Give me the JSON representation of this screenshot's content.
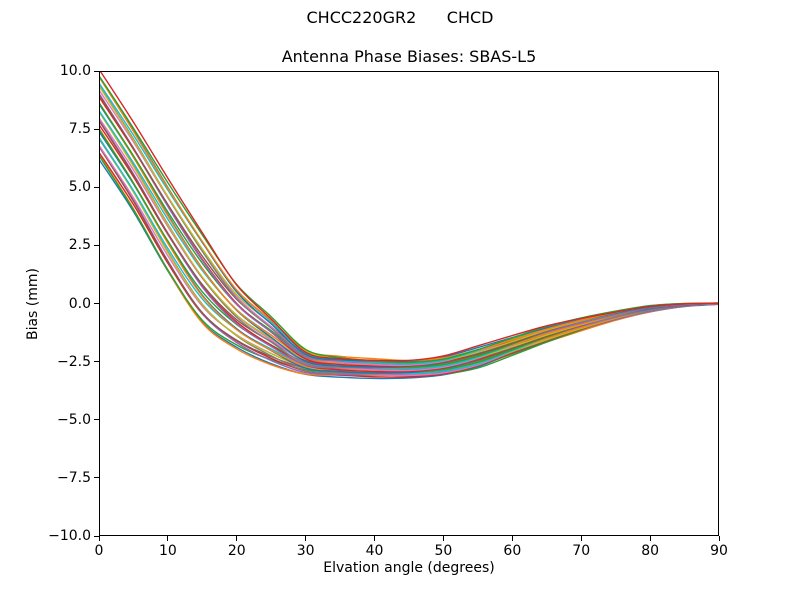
{
  "figure": {
    "suptitle": "CHCC220GR2      CHCD",
    "axes_title": "Antenna Phase Biases: SBAS-L5",
    "xlabel": "Elvation angle (degrees)",
    "ylabel": "Bias (mm)",
    "background_color": "#ffffff",
    "spine_color": "#000000"
  },
  "chart_data": {
    "type": "line",
    "title": "Antenna Phase Biases: SBAS-L5",
    "xlabel": "Elvation angle (degrees)",
    "ylabel": "Bias (mm)",
    "xlim": [
      0,
      90
    ],
    "ylim": [
      -10,
      10
    ],
    "grid": false,
    "legend": null,
    "xticks": [
      {
        "value": 0,
        "label": "0"
      },
      {
        "value": 10,
        "label": "10"
      },
      {
        "value": 20,
        "label": "20"
      },
      {
        "value": 30,
        "label": "30"
      },
      {
        "value": 40,
        "label": "40"
      },
      {
        "value": 50,
        "label": "50"
      },
      {
        "value": 60,
        "label": "60"
      },
      {
        "value": 70,
        "label": "70"
      },
      {
        "value": 80,
        "label": "80"
      },
      {
        "value": 90,
        "label": "90"
      }
    ],
    "yticks": [
      {
        "value": 10.0,
        "label": "10.0"
      },
      {
        "value": 7.5,
        "label": "7.5"
      },
      {
        "value": 5.0,
        "label": "5.0"
      },
      {
        "value": 2.5,
        "label": "2.5"
      },
      {
        "value": 0.0,
        "label": "0.0"
      },
      {
        "value": -2.5,
        "label": "−2.5"
      },
      {
        "value": -5.0,
        "label": "−5.0"
      },
      {
        "value": -7.5,
        "label": "−7.5"
      },
      {
        "value": -10.0,
        "label": "−10.0"
      }
    ],
    "description": "Bundle of ~34 per-satellite antenna phase bias curves spanning the band between envelope_lower and envelope_upper; all converge to 0 mm at 90 degrees elevation.",
    "x": [
      0,
      5,
      10,
      15,
      20,
      25,
      30,
      35,
      40,
      45,
      50,
      55,
      60,
      65,
      70,
      75,
      80,
      85,
      90
    ],
    "envelope_upper": [
      10.0,
      7.7,
      5.3,
      3.0,
      0.8,
      -0.6,
      -2.0,
      -2.3,
      -2.4,
      -2.45,
      -2.3,
      -1.9,
      -1.45,
      -1.0,
      -0.65,
      -0.35,
      -0.1,
      0.0,
      0.02
    ],
    "envelope_lower": [
      6.2,
      3.9,
      1.3,
      -0.9,
      -1.95,
      -2.6,
      -3.0,
      -3.1,
      -3.15,
      -3.15,
      -3.05,
      -2.75,
      -2.2,
      -1.65,
      -1.15,
      -0.7,
      -0.35,
      -0.12,
      -0.03
    ],
    "n_lines": 34,
    "line_width": 1.4,
    "palette": [
      "#1f77b4",
      "#ff7f0e",
      "#2ca02c",
      "#d62728",
      "#9467bd",
      "#8c564b",
      "#e377c2",
      "#7f7f7f",
      "#bcbd22",
      "#17becf"
    ]
  }
}
